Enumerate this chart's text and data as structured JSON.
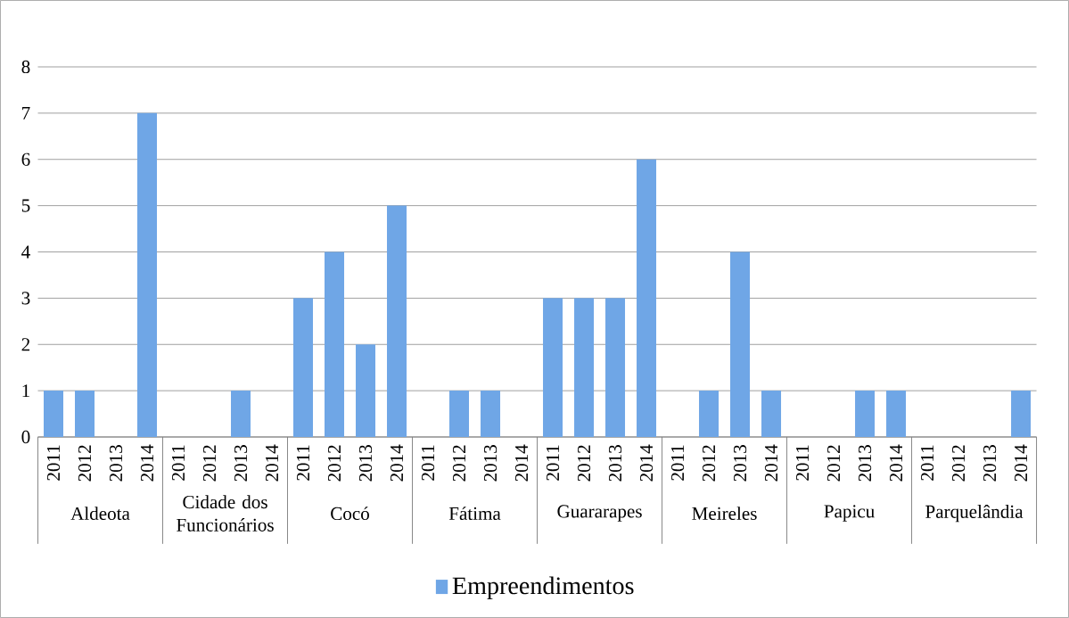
{
  "chart_data": {
    "type": "bar",
    "categories": [
      "2011",
      "2012",
      "2013",
      "2014",
      "2011",
      "2012",
      "2013",
      "2014",
      "2011",
      "2012",
      "2013",
      "2014",
      "2011",
      "2012",
      "2013",
      "2014",
      "2011",
      "2012",
      "2013",
      "2014",
      "2011",
      "2012",
      "2013",
      "2014",
      "2011",
      "2012",
      "2013",
      "2014",
      "2011",
      "2012",
      "2013",
      "2014"
    ],
    "annotations": [
      "Aldeota",
      "Cidade dos Funcionários",
      "Cocó",
      "Fátima",
      "Guararapes",
      "Meireles",
      "Papicu",
      "Parquelândia"
    ],
    "series": [
      {
        "name": "Empreendimentos",
        "color": "#6fa6e6",
        "values": [
          1,
          1,
          0,
          7,
          0,
          0,
          1,
          0,
          3,
          4,
          2,
          5,
          0,
          1,
          1,
          0,
          3,
          3,
          3,
          6,
          0,
          1,
          4,
          1,
          0,
          0,
          1,
          1,
          0,
          0,
          0,
          1
        ]
      }
    ],
    "ylim": [
      0,
      8
    ],
    "yticks": [
      0,
      1,
      2,
      3,
      4,
      5,
      6,
      7,
      8
    ],
    "grid": "y",
    "legend": "bottom"
  }
}
